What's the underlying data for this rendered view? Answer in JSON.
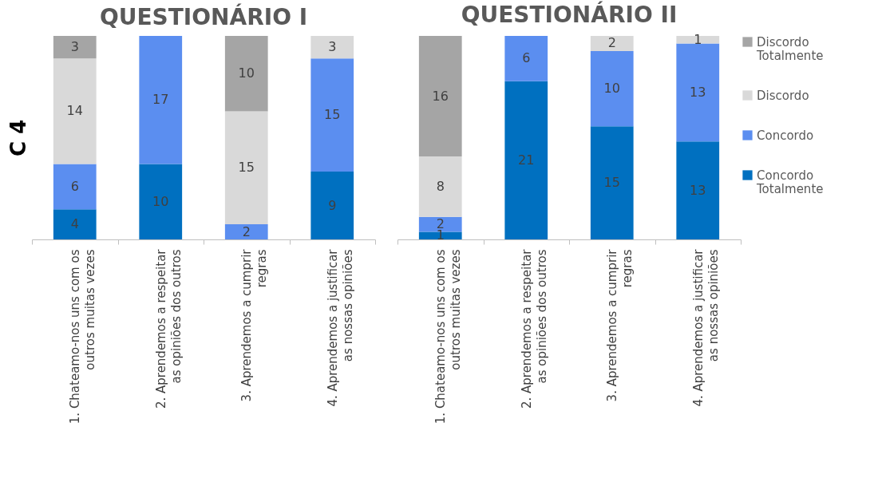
{
  "chart_data": [
    {
      "type": "bar",
      "title": "QUESTIONÁRIO I",
      "ylabel": "C 4",
      "stacked": true,
      "data_labels": true,
      "legend": "right",
      "tick_labels": "x",
      "ylim": [
        0,
        27
      ],
      "categories": [
        "1. Chateamo-nos uns com os outros muitas vezes",
        "2. Aprendemos a respeitar as opiniões dos outros",
        "3. Aprendemos a cumprir regras",
        "4. Aprendemos a justificar as nossas opiniões"
      ],
      "series": [
        {
          "name": "Concordo Totalmente",
          "color": "#0070c0",
          "values": [
            4,
            10,
            null,
            9
          ]
        },
        {
          "name": "Concordo",
          "color": "#5b8ef0",
          "values": [
            6,
            17,
            2,
            15
          ]
        },
        {
          "name": "Discordo",
          "color": "#d9d9d9",
          "values": [
            14,
            null,
            15,
            3
          ]
        },
        {
          "name": "Discordo Totalmente",
          "color": "#a5a5a5",
          "values": [
            3,
            null,
            10,
            null
          ]
        }
      ]
    },
    {
      "type": "bar",
      "title": "QUESTIONÁRIO II",
      "stacked": true,
      "data_labels": true,
      "legend": "right",
      "tick_labels": "x",
      "ylim": [
        0,
        27
      ],
      "categories": [
        "1. Chateamo-nos uns com os outros muitas vezes",
        "2. Aprendemos a respeitar as opiniões dos outros",
        "3. Aprendemos a cumprir regras",
        "4. Aprendemos a justificar as nossas opiniões"
      ],
      "series": [
        {
          "name": "Concordo Totalmente",
          "color": "#0070c0",
          "values": [
            1,
            21,
            15,
            13
          ]
        },
        {
          "name": "Concordo",
          "color": "#5b8ef0",
          "values": [
            2,
            6,
            10,
            13
          ]
        },
        {
          "name": "Discordo",
          "color": "#d9d9d9",
          "values": [
            8,
            null,
            2,
            1
          ]
        },
        {
          "name": "Discordo Totalmente",
          "color": "#a5a5a5",
          "values": [
            16,
            null,
            null,
            null
          ]
        }
      ]
    }
  ]
}
